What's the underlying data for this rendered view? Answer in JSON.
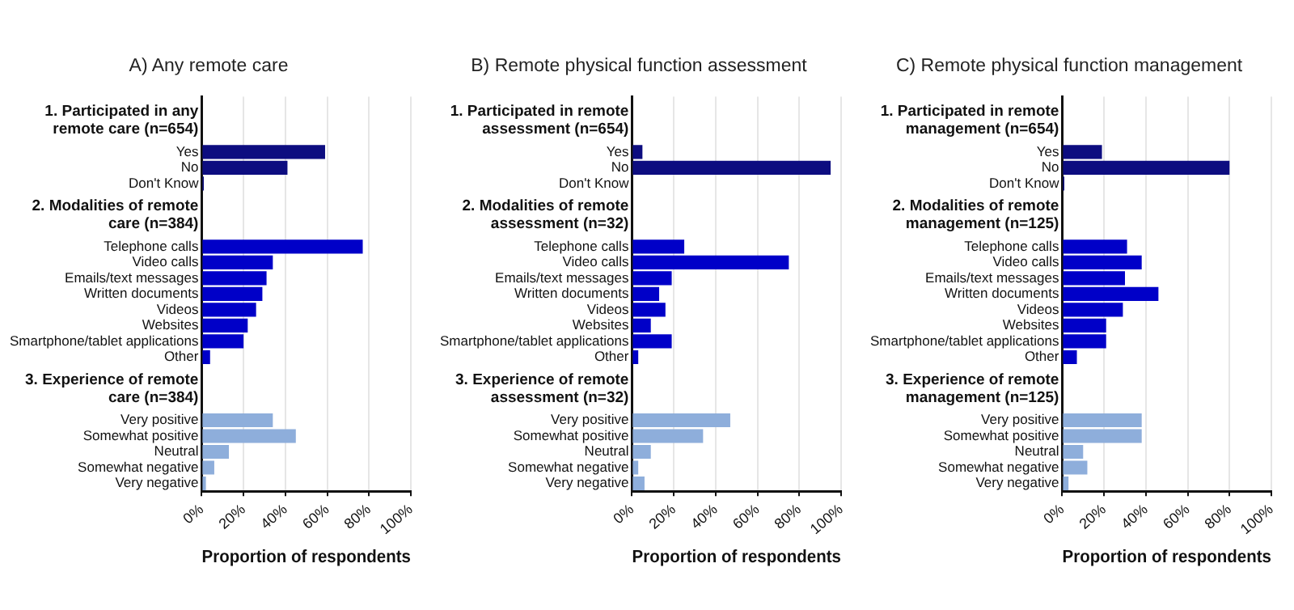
{
  "chart_data": [
    {
      "type": "bar",
      "orientation": "horizontal",
      "title": "A) Any remote care",
      "xlabel": "Proportion of respondents",
      "xlim": [
        0,
        100
      ],
      "xticks": [
        {
          "value": 0,
          "label": "0%"
        },
        {
          "value": 20,
          "label": "20%"
        },
        {
          "value": 40,
          "label": "40%"
        },
        {
          "value": 60,
          "label": "60%"
        },
        {
          "value": 80,
          "label": "80%"
        },
        {
          "value": 100,
          "label": "100%"
        }
      ],
      "grid": "x",
      "legend": false,
      "categories": [
        null,
        "1. Participated in any remote care (n=654)",
        null,
        "Yes",
        "No",
        "Don't Know",
        null,
        "2. Modalities of remote care (n=384)",
        null,
        "Telephone calls",
        "Video calls",
        "Emails/text messages",
        "Written documents",
        "Videos",
        "Websites",
        "Smartphone/tablet applications",
        "Other",
        null,
        "3. Experience of remote care (n=384)",
        null,
        "Very positive",
        "Somewhat positive",
        "Neutral",
        "Somewhat negative",
        "Very negative"
      ],
      "values": [
        null,
        null,
        null,
        59,
        41,
        1,
        null,
        null,
        null,
        77,
        34,
        31,
        29,
        26,
        22,
        20,
        4,
        null,
        null,
        null,
        34,
        45,
        13,
        6,
        2
      ],
      "colors": [
        null,
        null,
        null,
        "#0d0d80",
        "#0d0d80",
        "#0d0d80",
        null,
        null,
        null,
        "#0000c8",
        "#0000c8",
        "#0000c8",
        "#0000c8",
        "#0000c8",
        "#0000c8",
        "#0000c8",
        "#0000c8",
        null,
        null,
        null,
        "#8eaedb",
        "#8eaedb",
        "#8eaedb",
        "#8eaedb",
        "#8eaedb"
      ]
    },
    {
      "type": "bar",
      "orientation": "horizontal",
      "title": "B) Remote physical function assessment",
      "xlabel": "Proportion of respondents",
      "xlim": [
        0,
        100
      ],
      "xticks": [
        {
          "value": 0,
          "label": "0%"
        },
        {
          "value": 20,
          "label": "20%"
        },
        {
          "value": 40,
          "label": "40%"
        },
        {
          "value": 60,
          "label": "60%"
        },
        {
          "value": 80,
          "label": "80%"
        },
        {
          "value": 100,
          "label": "100%"
        }
      ],
      "grid": "x",
      "legend": false,
      "categories": [
        null,
        "1. Participated in remote assessment (n=654)",
        null,
        "Yes",
        "No",
        "Don't Know",
        null,
        "2. Modalities of remote assessment (n=32)",
        null,
        "Telephone calls",
        "Video calls",
        "Emails/text messages",
        "Written documents",
        "Videos",
        "Websites",
        "Smartphone/tablet applications",
        "Other",
        null,
        "3. Experience of remote assessment (n=32)",
        null,
        "Very positive",
        "Somewhat positive",
        "Neutral",
        "Somewhat negative",
        "Very negative"
      ],
      "values": [
        null,
        null,
        null,
        5,
        95,
        0,
        null,
        null,
        null,
        25,
        75,
        19,
        13,
        16,
        9,
        19,
        3,
        null,
        null,
        null,
        47,
        34,
        9,
        3,
        6
      ],
      "colors": [
        null,
        null,
        null,
        "#0d0d80",
        "#0d0d80",
        "#0d0d80",
        null,
        null,
        null,
        "#0000c8",
        "#0000c8",
        "#0000c8",
        "#0000c8",
        "#0000c8",
        "#0000c8",
        "#0000c8",
        "#0000c8",
        null,
        null,
        null,
        "#8eaedb",
        "#8eaedb",
        "#8eaedb",
        "#8eaedb",
        "#8eaedb"
      ]
    },
    {
      "type": "bar",
      "orientation": "horizontal",
      "title": "C) Remote physical function management",
      "xlabel": "Proportion of respondents",
      "xlim": [
        0,
        100
      ],
      "xticks": [
        {
          "value": 0,
          "label": "0%"
        },
        {
          "value": 20,
          "label": "20%"
        },
        {
          "value": 40,
          "label": "40%"
        },
        {
          "value": 60,
          "label": "60%"
        },
        {
          "value": 80,
          "label": "80%"
        },
        {
          "value": 100,
          "label": "100%"
        }
      ],
      "grid": "x",
      "legend": false,
      "categories": [
        null,
        "1. Participated in remote management (n=654)",
        null,
        "Yes",
        "No",
        "Don't Know",
        null,
        "2. Modalities of remote management (n=125)",
        null,
        "Telephone calls",
        "Video calls",
        "Emails/text messages",
        "Written documents",
        "Videos",
        "Websites",
        "Smartphone/tablet applications",
        "Other",
        null,
        "3. Experience of remote management (n=125)",
        null,
        "Very positive",
        "Somewhat positive",
        "Neutral",
        "Somewhat negative",
        "Very negative"
      ],
      "values": [
        null,
        null,
        null,
        19,
        80,
        1,
        null,
        null,
        null,
        31,
        38,
        30,
        46,
        29,
        21,
        21,
        7,
        null,
        null,
        null,
        38,
        38,
        10,
        12,
        3
      ],
      "colors": [
        null,
        null,
        null,
        "#0d0d80",
        "#0d0d80",
        "#0d0d80",
        null,
        null,
        null,
        "#0000c8",
        "#0000c8",
        "#0000c8",
        "#0000c8",
        "#0000c8",
        "#0000c8",
        "#0000c8",
        "#0000c8",
        null,
        null,
        null,
        "#8eaedb",
        "#8eaedb",
        "#8eaedb",
        "#8eaedb",
        "#8eaedb"
      ]
    }
  ]
}
